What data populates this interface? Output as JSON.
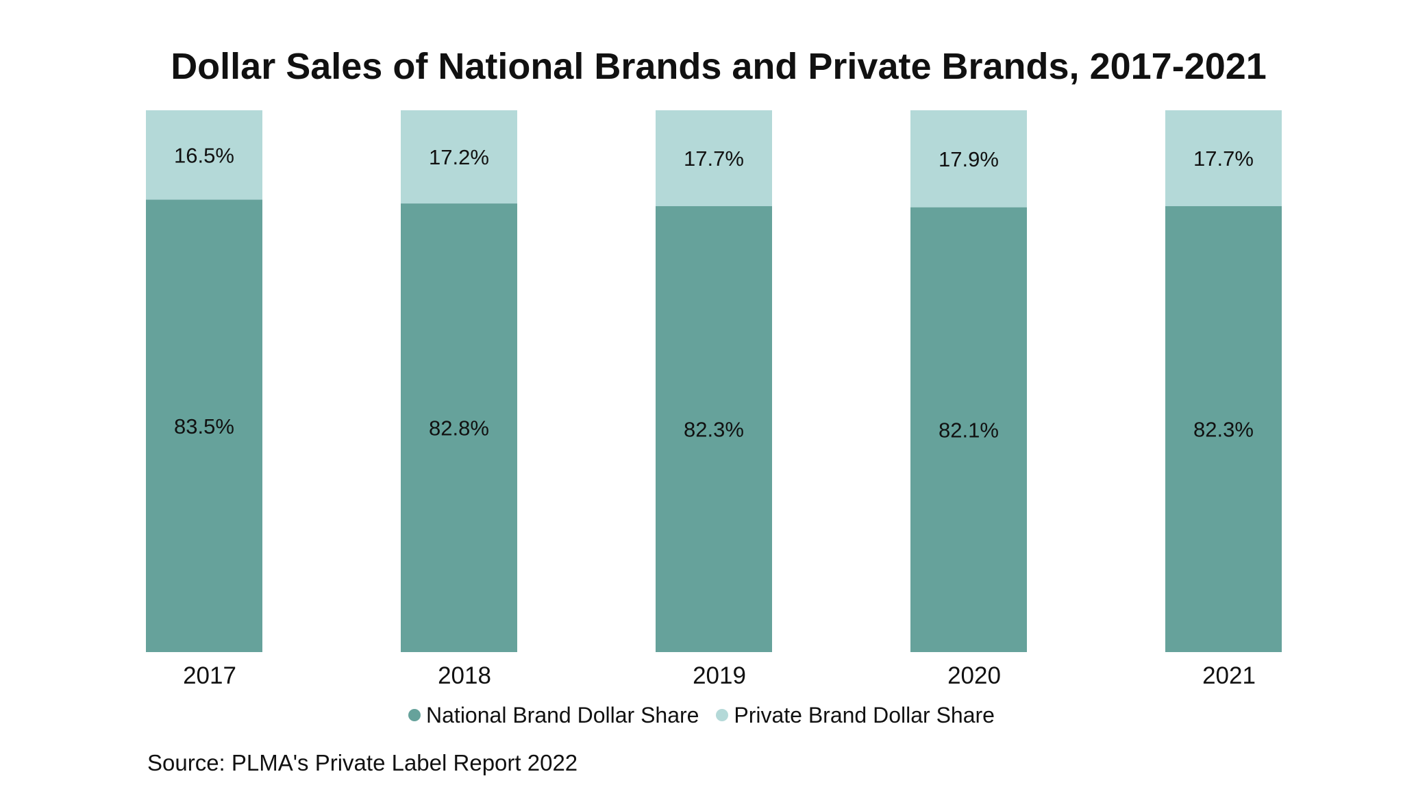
{
  "chart_data": {
    "type": "bar",
    "stacked": true,
    "title": "Dollar Sales of National Brands and Private Brands, 2017-2021",
    "categories": [
      "2017",
      "2018",
      "2019",
      "2020",
      "2021"
    ],
    "series": [
      {
        "name": "National Brand Dollar Share",
        "values": [
          83.5,
          82.8,
          82.3,
          82.1,
          82.3
        ],
        "labels": [
          "83.5%",
          "82.8%",
          "82.3%",
          "82.1%",
          "82.3%"
        ],
        "color": "#66a29b"
      },
      {
        "name": "Private Brand Dollar Share",
        "values": [
          16.5,
          17.2,
          17.7,
          17.9,
          17.7
        ],
        "labels": [
          "16.5%",
          "17.2%",
          "17.7%",
          "17.9%",
          "17.7%"
        ],
        "color": "#b4d9d8"
      }
    ],
    "ylim": [
      0,
      100
    ],
    "grid": false,
    "legend_position": "bottom"
  },
  "source": "Source: PLMA's Private Label Report 2022"
}
